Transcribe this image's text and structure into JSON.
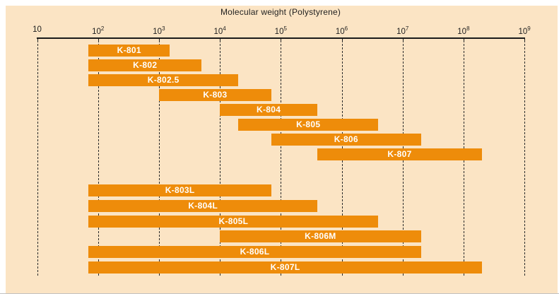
{
  "chart_data": {
    "type": "bar",
    "orientation": "horizontal-range",
    "x_scale": "log10",
    "x_range": [
      10,
      1000000000
    ],
    "title": "Molecular weight (Polystyrene)",
    "x_ticks": [
      "10",
      "10^2",
      "10^3",
      "10^4",
      "10^5",
      "10^6",
      "10^7",
      "10^8",
      "10^9"
    ],
    "grid": "vertical-dashed",
    "legend": "none",
    "columns": [
      {
        "label": "K-801",
        "min": 70,
        "max": 1500,
        "group": "upper",
        "row": 0
      },
      {
        "label": "K-802",
        "min": 70,
        "max": 5000,
        "group": "upper",
        "row": 1
      },
      {
        "label": "K-802.5",
        "min": 70,
        "max": 20000,
        "group": "upper",
        "row": 2
      },
      {
        "label": "K-803",
        "min": 1000,
        "max": 70000,
        "group": "upper",
        "row": 3
      },
      {
        "label": "K-804",
        "min": 10000,
        "max": 400000,
        "group": "upper",
        "row": 4
      },
      {
        "label": "K-805",
        "min": 20000,
        "max": 4000000,
        "group": "upper",
        "row": 5
      },
      {
        "label": "K-806",
        "min": 70000,
        "max": 20000000,
        "group": "upper",
        "row": 6
      },
      {
        "label": "K-807",
        "min": 400000,
        "max": 200000000,
        "group": "upper",
        "row": 7
      },
      {
        "label": "K-803L",
        "min": 70,
        "max": 70000,
        "group": "lower",
        "row": 0
      },
      {
        "label": "K-804L",
        "min": 70,
        "max": 400000,
        "group": "lower",
        "row": 1
      },
      {
        "label": "K-805L",
        "min": 70,
        "max": 4000000,
        "group": "lower",
        "row": 2
      },
      {
        "label": "K-806M",
        "min": 10000,
        "max": 20000000,
        "group": "lower",
        "row": 3
      },
      {
        "label": "K-806L",
        "min": 70,
        "max": 20000000,
        "group": "lower",
        "row": 4
      },
      {
        "label": "K-807L",
        "min": 70,
        "max": 200000000,
        "group": "lower",
        "row": 5
      }
    ],
    "colors": {
      "bar": "#ee8c0a",
      "panel_bg": "#fbe4c4",
      "page_bg": "#ffffff",
      "axis": "#1a1a1a",
      "grid": "#2a2a2a",
      "bar_label": "#ffffff",
      "tick_text": "#1f1f1f"
    }
  }
}
